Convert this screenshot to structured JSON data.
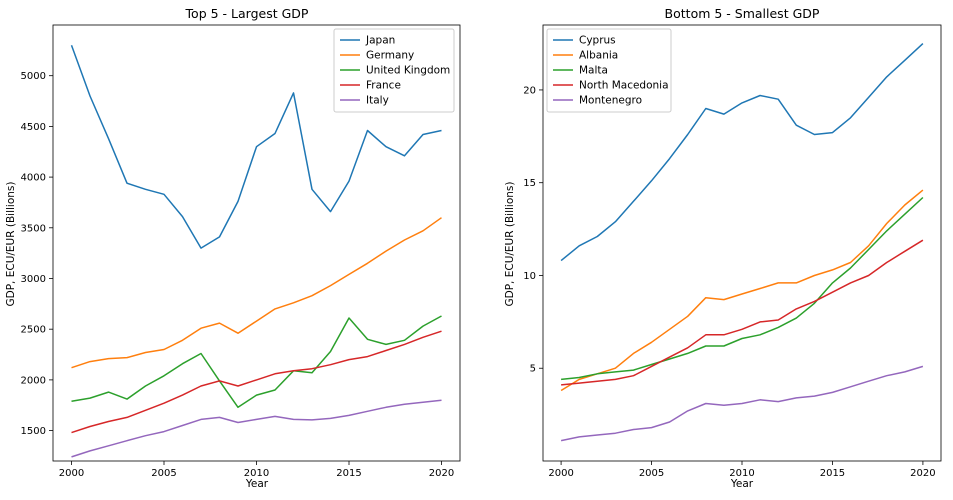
{
  "chart_data": [
    {
      "type": "line",
      "title": "Top 5 - Largest GDP",
      "xlabel": "Year",
      "ylabel": "GDP, ECU/EUR (Billions)",
      "x": [
        2000,
        2001,
        2002,
        2003,
        2004,
        2005,
        2006,
        2007,
        2008,
        2009,
        2010,
        2011,
        2012,
        2013,
        2014,
        2015,
        2016,
        2017,
        2018,
        2019,
        2020
      ],
      "xlim": [
        1999,
        2021
      ],
      "ylim": [
        1200,
        5500
      ],
      "xticks": [
        2000,
        2005,
        2010,
        2015,
        2020
      ],
      "yticks": [
        1500,
        2000,
        2500,
        3000,
        3500,
        4000,
        4500,
        5000
      ],
      "legend_position": "top-right",
      "series": [
        {
          "name": "Japan",
          "color": "#1f77b4",
          "values": [
            5300,
            4800,
            4380,
            3940,
            3880,
            3830,
            3610,
            3300,
            3410,
            3760,
            4300,
            4430,
            4830,
            3880,
            3660,
            3960,
            4460,
            4300,
            4210,
            4420,
            4460
          ]
        },
        {
          "name": "Germany",
          "color": "#ff7f0e",
          "values": [
            2120,
            2180,
            2210,
            2220,
            2270,
            2300,
            2390,
            2510,
            2560,
            2460,
            2580,
            2700,
            2760,
            2830,
            2930,
            3040,
            3150,
            3270,
            3380,
            3470,
            3600
          ]
        },
        {
          "name": "United Kingdom",
          "color": "#2ca02c",
          "values": [
            1790,
            1820,
            1880,
            1810,
            1940,
            2040,
            2160,
            2260,
            1990,
            1730,
            1850,
            1900,
            2090,
            2070,
            2280,
            2610,
            2400,
            2350,
            2390,
            2530,
            2630
          ]
        },
        {
          "name": "France",
          "color": "#d62728",
          "values": [
            1480,
            1540,
            1590,
            1630,
            1700,
            1770,
            1850,
            1940,
            1990,
            1940,
            2000,
            2060,
            2090,
            2110,
            2150,
            2200,
            2230,
            2290,
            2350,
            2420,
            2480
          ]
        },
        {
          "name": "Italy",
          "color": "#9467bd",
          "values": [
            1240,
            1300,
            1350,
            1400,
            1450,
            1490,
            1550,
            1610,
            1630,
            1580,
            1610,
            1640,
            1610,
            1605,
            1620,
            1650,
            1690,
            1730,
            1760,
            1780,
            1800
          ]
        }
      ]
    },
    {
      "type": "line",
      "title": "Bottom 5 - Smallest GDP",
      "xlabel": "Year",
      "ylabel": "GDP, ECU/EUR (Billions)",
      "x": [
        2000,
        2001,
        2002,
        2003,
        2004,
        2005,
        2006,
        2007,
        2008,
        2009,
        2010,
        2011,
        2012,
        2013,
        2014,
        2015,
        2016,
        2017,
        2018,
        2019,
        2020
      ],
      "xlim": [
        1999,
        2021
      ],
      "ylim": [
        0,
        23.5
      ],
      "xticks": [
        2000,
        2005,
        2010,
        2015,
        2020
      ],
      "yticks": [
        5,
        10,
        15,
        20
      ],
      "legend_position": "top-left",
      "series": [
        {
          "name": "Cyprus",
          "color": "#1f77b4",
          "values": [
            10.8,
            11.6,
            12.1,
            12.9,
            14.0,
            15.1,
            16.3,
            17.6,
            19.0,
            18.7,
            19.3,
            19.7,
            19.5,
            18.1,
            17.6,
            17.7,
            18.5,
            19.6,
            20.7,
            21.6,
            22.5
          ]
        },
        {
          "name": "Albania",
          "color": "#ff7f0e",
          "values": [
            3.8,
            4.4,
            4.7,
            5.0,
            5.8,
            6.4,
            7.1,
            7.8,
            8.8,
            8.7,
            9.0,
            9.3,
            9.6,
            9.6,
            10.0,
            10.3,
            10.7,
            11.6,
            12.8,
            13.8,
            14.6
          ]
        },
        {
          "name": "Malta",
          "color": "#2ca02c",
          "values": [
            4.4,
            4.5,
            4.7,
            4.8,
            4.9,
            5.2,
            5.5,
            5.8,
            6.2,
            6.2,
            6.6,
            6.8,
            7.2,
            7.7,
            8.5,
            9.6,
            10.4,
            11.4,
            12.4,
            13.3,
            14.2
          ]
        },
        {
          "name": "North Macedonia",
          "color": "#d62728",
          "values": [
            4.1,
            4.2,
            4.3,
            4.4,
            4.6,
            5.1,
            5.6,
            6.1,
            6.8,
            6.8,
            7.1,
            7.5,
            7.6,
            8.2,
            8.6,
            9.1,
            9.6,
            10.0,
            10.7,
            11.3,
            11.9
          ]
        },
        {
          "name": "Montenegro",
          "color": "#9467bd",
          "values": [
            1.1,
            1.3,
            1.4,
            1.5,
            1.7,
            1.8,
            2.1,
            2.7,
            3.1,
            3.0,
            3.1,
            3.3,
            3.2,
            3.4,
            3.5,
            3.7,
            4.0,
            4.3,
            4.6,
            4.8,
            5.1
          ]
        }
      ]
    }
  ]
}
